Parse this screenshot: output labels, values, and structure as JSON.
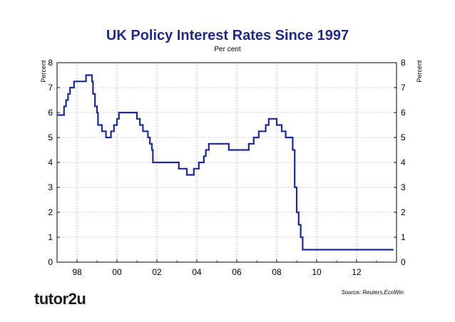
{
  "chart_data": {
    "type": "line",
    "title": "UK Policy Interest Rates Since 1997",
    "subtitle": "Per cent",
    "ylabel_left": "Percent",
    "ylabel_right": "Percent",
    "xlim": [
      1997.0,
      2014.0
    ],
    "ylim": [
      0,
      8
    ],
    "x_ticks": [
      1998,
      2000,
      2002,
      2004,
      2006,
      2008,
      2010,
      2012
    ],
    "x_tick_labels": [
      "98",
      "00",
      "02",
      "04",
      "06",
      "08",
      "10",
      "12"
    ],
    "y_ticks": [
      0,
      1,
      2,
      3,
      4,
      5,
      6,
      7,
      8
    ],
    "y_tick_labels": [
      "0",
      "1",
      "2",
      "3",
      "4",
      "5",
      "6",
      "7",
      "8"
    ],
    "grid": true,
    "series": [
      {
        "name": "",
        "color": "#1a2a9c",
        "step": true,
        "points": [
          [
            1997.0,
            5.9
          ],
          [
            1997.35,
            6.25
          ],
          [
            1997.45,
            6.5
          ],
          [
            1997.55,
            6.75
          ],
          [
            1997.65,
            7.0
          ],
          [
            1997.85,
            7.25
          ],
          [
            1998.45,
            7.5
          ],
          [
            1998.75,
            7.25
          ],
          [
            1998.8,
            6.75
          ],
          [
            1998.9,
            6.25
          ],
          [
            1999.0,
            6.0
          ],
          [
            1999.05,
            5.5
          ],
          [
            1999.25,
            5.25
          ],
          [
            1999.45,
            5.0
          ],
          [
            1999.7,
            5.25
          ],
          [
            1999.85,
            5.5
          ],
          [
            2000.0,
            5.75
          ],
          [
            2000.1,
            6.0
          ],
          [
            2001.0,
            5.75
          ],
          [
            2001.15,
            5.5
          ],
          [
            2001.3,
            5.25
          ],
          [
            2001.55,
            5.0
          ],
          [
            2001.65,
            4.75
          ],
          [
            2001.75,
            4.5
          ],
          [
            2001.8,
            4.0
          ],
          [
            2003.1,
            3.75
          ],
          [
            2003.5,
            3.5
          ],
          [
            2003.85,
            3.75
          ],
          [
            2004.1,
            4.0
          ],
          [
            2004.35,
            4.25
          ],
          [
            2004.45,
            4.5
          ],
          [
            2004.6,
            4.75
          ],
          [
            2005.6,
            4.5
          ],
          [
            2006.6,
            4.75
          ],
          [
            2006.85,
            5.0
          ],
          [
            2007.1,
            5.25
          ],
          [
            2007.45,
            5.5
          ],
          [
            2007.6,
            5.75
          ],
          [
            2008.0,
            5.5
          ],
          [
            2008.25,
            5.25
          ],
          [
            2008.45,
            5.0
          ],
          [
            2008.8,
            4.5
          ],
          [
            2008.9,
            3.0
          ],
          [
            2009.0,
            2.0
          ],
          [
            2009.1,
            1.5
          ],
          [
            2009.2,
            1.0
          ],
          [
            2009.3,
            0.5
          ],
          [
            2013.85,
            0.5
          ]
        ]
      }
    ],
    "annotation": "Source: Reuters,EcoWin"
  },
  "branding": {
    "logo_text": "tutor2u"
  }
}
